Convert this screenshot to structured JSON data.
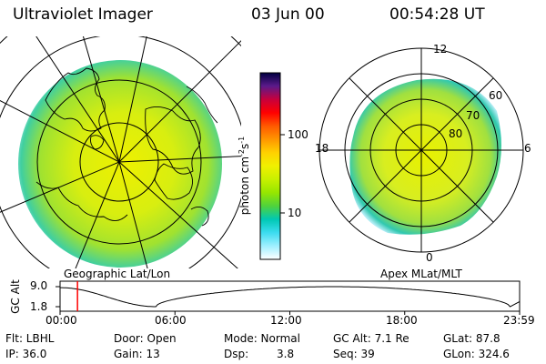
{
  "header": {
    "instrument": "Ultraviolet Imager",
    "date": "03 Jun 00",
    "time": "00:54:28 UT"
  },
  "left_panel": {
    "label": "Geographic Lat/Lon"
  },
  "right_panel": {
    "label": "Apex MLat/MLT",
    "mlt_labels": [
      "12",
      "18",
      "6",
      "0"
    ],
    "mlat_labels": [
      "60",
      "70",
      "80"
    ]
  },
  "colorbar": {
    "unit_text": "photon cm",
    "unit_sup1": "-2",
    "unit_s": "s",
    "unit_sup2": "-1",
    "ticks": [
      "100",
      "10"
    ],
    "colors": [
      "#000040",
      "#5a1a8a",
      "#c8003c",
      "#ff0000",
      "#ff5a00",
      "#ff9600",
      "#ffd200",
      "#f0f000",
      "#c8f000",
      "#96e600",
      "#50d23c",
      "#00c8b4",
      "#3cdcf0",
      "#a0f0ff",
      "#ffffff"
    ]
  },
  "timeline": {
    "ylabel": "GC Alt",
    "ytick_top": "9.0",
    "ytick_bottom": "1.8",
    "xticks": [
      "00:00",
      "06:00",
      "12:00",
      "18:00",
      "23:59"
    ],
    "marker_time_hours": 0.91,
    "marker_color": "#ff0000"
  },
  "footer": {
    "flt": "Flt: LBHL",
    "ip": "IP: 36.0",
    "door": "Door: Open",
    "gain": "Gain: 13",
    "mode": "Mode: Normal",
    "dsp_label": "Dsp:",
    "dsp_value": "3.8",
    "gc_alt": "GC Alt: 7.1 Re",
    "seq": "Seq: 39",
    "glat": "GLat: 87.8",
    "glon": "GLon: 324.6"
  }
}
